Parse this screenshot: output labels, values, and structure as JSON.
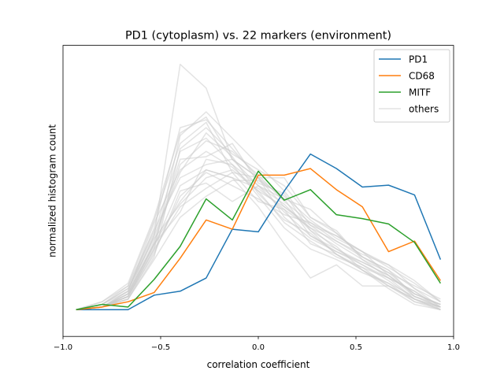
{
  "chart_data": {
    "type": "line",
    "title": "PD1 (cytoplasm) vs. 22 markers (environment)",
    "xlabel": "correlation coefficient",
    "ylabel": "normalized histogram count",
    "xlim": [
      -1.0,
      1.0
    ],
    "ylim": [
      0,
      1.0
    ],
    "x_ticks": [
      -1.0,
      -0.5,
      0.0,
      0.5,
      1.0
    ],
    "x_tick_labels": [
      "−1.0",
      "−0.5",
      "0.0",
      "0.5",
      "1.0"
    ],
    "y_ticks_shown": false,
    "grid": false,
    "legend_placement": "top-right",
    "x": [
      -0.933,
      -0.8,
      -0.667,
      -0.533,
      -0.4,
      -0.267,
      -0.133,
      0.0,
      0.133,
      0.267,
      0.4,
      0.533,
      0.667,
      0.8,
      0.933
    ],
    "series": [
      {
        "name": "PD1",
        "color": "#1f77b4",
        "values": [
          0.05,
          0.05,
          0.05,
          0.105,
          0.12,
          0.17,
          0.355,
          0.345,
          0.5,
          0.64,
          0.585,
          0.515,
          0.522,
          0.485,
          0.24
        ]
      },
      {
        "name": "CD68",
        "color": "#ff7f0e",
        "values": [
          0.05,
          0.06,
          0.08,
          0.115,
          0.245,
          0.39,
          0.355,
          0.56,
          0.56,
          0.585,
          0.505,
          0.44,
          0.27,
          0.31,
          0.16
        ]
      },
      {
        "name": "MITF",
        "color": "#2ca02c",
        "values": [
          0.05,
          0.07,
          0.06,
          0.165,
          0.29,
          0.47,
          0.39,
          0.575,
          0.465,
          0.505,
          0.41,
          0.395,
          0.375,
          0.305,
          0.15
        ]
      },
      {
        "name": "others",
        "color": "#cccccc",
        "opacity": 0.55,
        "lines": [
          [
            0.05,
            0.06,
            0.11,
            0.33,
            0.98,
            0.89,
            0.62,
            0.55,
            0.47,
            0.43,
            0.34,
            0.25,
            0.2,
            0.1,
            0.07
          ],
          [
            0.05,
            0.06,
            0.1,
            0.28,
            0.71,
            0.8,
            0.7,
            0.6,
            0.5,
            0.37,
            0.33,
            0.27,
            0.18,
            0.11,
            0.07
          ],
          [
            0.05,
            0.07,
            0.12,
            0.36,
            0.74,
            0.77,
            0.66,
            0.55,
            0.44,
            0.36,
            0.28,
            0.22,
            0.16,
            0.09,
            0.06
          ],
          [
            0.05,
            0.08,
            0.15,
            0.4,
            0.72,
            0.78,
            0.62,
            0.52,
            0.45,
            0.35,
            0.26,
            0.2,
            0.13,
            0.07,
            0.05
          ],
          [
            0.05,
            0.06,
            0.09,
            0.25,
            0.66,
            0.74,
            0.64,
            0.58,
            0.52,
            0.4,
            0.35,
            0.24,
            0.17,
            0.12,
            0.06
          ],
          [
            0.05,
            0.06,
            0.1,
            0.3,
            0.6,
            0.69,
            0.65,
            0.56,
            0.46,
            0.38,
            0.31,
            0.26,
            0.22,
            0.13,
            0.06
          ],
          [
            0.05,
            0.07,
            0.13,
            0.34,
            0.65,
            0.7,
            0.6,
            0.52,
            0.42,
            0.33,
            0.28,
            0.23,
            0.18,
            0.1,
            0.06
          ],
          [
            0.05,
            0.06,
            0.12,
            0.38,
            0.58,
            0.65,
            0.59,
            0.5,
            0.44,
            0.37,
            0.3,
            0.24,
            0.19,
            0.11,
            0.07
          ],
          [
            0.05,
            0.06,
            0.11,
            0.31,
            0.62,
            0.63,
            0.68,
            0.53,
            0.49,
            0.35,
            0.29,
            0.2,
            0.15,
            0.08,
            0.06
          ],
          [
            0.05,
            0.07,
            0.14,
            0.35,
            0.55,
            0.6,
            0.62,
            0.55,
            0.4,
            0.32,
            0.27,
            0.22,
            0.17,
            0.12,
            0.05
          ],
          [
            0.05,
            0.06,
            0.1,
            0.29,
            0.52,
            0.58,
            0.55,
            0.51,
            0.43,
            0.36,
            0.31,
            0.25,
            0.2,
            0.13,
            0.08
          ],
          [
            0.05,
            0.06,
            0.09,
            0.27,
            0.48,
            0.57,
            0.52,
            0.47,
            0.41,
            0.38,
            0.33,
            0.27,
            0.21,
            0.15,
            0.08
          ],
          [
            0.05,
            0.07,
            0.13,
            0.32,
            0.45,
            0.55,
            0.58,
            0.5,
            0.38,
            0.31,
            0.25,
            0.21,
            0.14,
            0.09,
            0.05
          ],
          [
            0.05,
            0.06,
            0.11,
            0.3,
            0.42,
            0.62,
            0.6,
            0.48,
            0.36,
            0.28,
            0.24,
            0.19,
            0.15,
            0.1,
            0.06
          ],
          [
            0.05,
            0.06,
            0.1,
            0.26,
            0.5,
            0.53,
            0.46,
            0.52,
            0.47,
            0.33,
            0.27,
            0.23,
            0.18,
            0.11,
            0.07
          ],
          [
            0.05,
            0.06,
            0.12,
            0.33,
            0.57,
            0.72,
            0.63,
            0.49,
            0.39,
            0.34,
            0.26,
            0.2,
            0.14,
            0.08,
            0.05
          ],
          [
            0.05,
            0.08,
            0.14,
            0.39,
            0.68,
            0.76,
            0.57,
            0.46,
            0.43,
            0.3,
            0.26,
            0.21,
            0.17,
            0.09,
            0.06
          ],
          [
            0.05,
            0.06,
            0.09,
            0.24,
            0.4,
            0.48,
            0.54,
            0.54,
            0.48,
            0.39,
            0.32,
            0.27,
            0.22,
            0.16,
            0.08
          ],
          [
            0.05,
            0.06,
            0.1,
            0.28,
            0.44,
            0.51,
            0.57,
            0.55,
            0.55,
            0.4,
            0.34,
            0.25,
            0.19,
            0.14,
            0.09
          ],
          [
            0.05,
            0.06,
            0.11,
            0.3,
            0.46,
            0.58,
            0.55,
            0.44,
            0.3,
            0.17,
            0.22,
            0.14,
            0.14,
            0.09,
            0.05
          ]
        ]
      }
    ]
  }
}
